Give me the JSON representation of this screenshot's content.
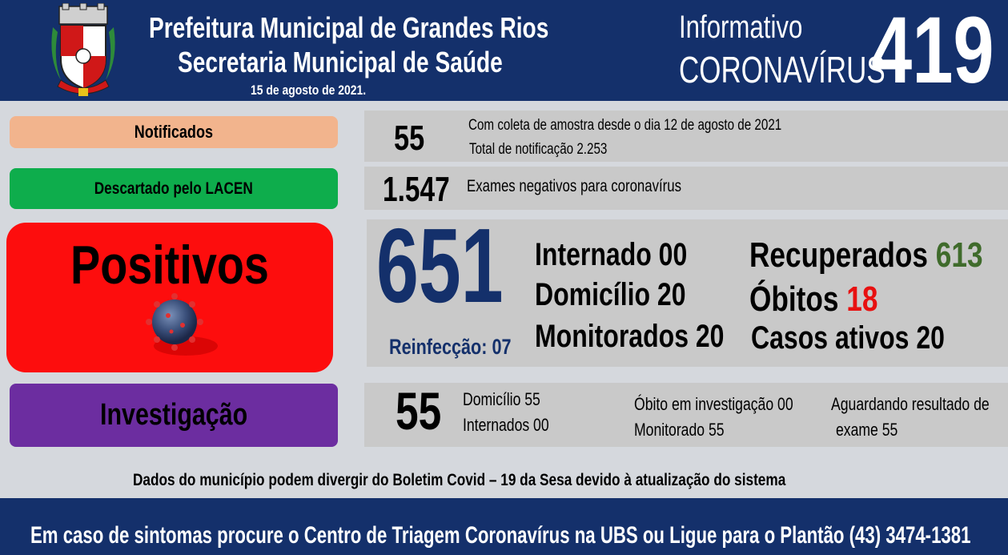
{
  "header": {
    "title_line1": "Prefeitura Municipal de Grandes Rios",
    "title_line2": "Secretaria Municipal de Saúde",
    "date": "15 de agosto  de 2021.",
    "informativo": "Informativo",
    "coronavirus": "CORONAVÍRUS",
    "bulletin_number": "419"
  },
  "notificados": {
    "label": "Notificados",
    "value": "55",
    "note1": "Com coleta de amostra desde o dia 12 de agosto de 2021",
    "note2": "Total de notificação  2.253"
  },
  "descartado": {
    "label": "Descartado  pelo LACEN",
    "value": "1.547",
    "note": "Exames negativos  para coronavírus"
  },
  "positivos": {
    "label": "Positivos",
    "value": "651",
    "reinfeccao": "Reinfecção:  07",
    "internado": "Internado 00",
    "domicilio": "Domicílio 20",
    "monitorados": "Monitorados 20",
    "recuperados_label": "Recuperados",
    "recuperados_value": "613",
    "obitos_label": "Óbitos",
    "obitos_value": "18",
    "casos_ativos": "Casos ativos 20"
  },
  "investigacao": {
    "label": "Investigação",
    "value": "55",
    "domicilio": "Domicílio 55",
    "internados": "Internados 00",
    "obito": "Óbito  em investigação  00",
    "monitorado": "Monitorado 55",
    "aguardando1": "Aguardando resultado de",
    "aguardando2": "exame 55"
  },
  "notice": "Dados do município  podem  divergir do Boletim  Covid – 19 da Sesa devido à atualização  do sistema",
  "footer": "Em caso de sintomas  procure  o Centro de Triagem  Coronavírus  na UBS ou Ligue para o Plantão  (43) 3474-1381",
  "colors": {
    "header_bg": "#14306b",
    "notificados": "#f2b48d",
    "descartado": "#0ead4c",
    "positivos": "#fd0d0d",
    "investigacao": "#6c2da0",
    "recuperados_value": "#3f6b2b",
    "obitos_value": "#e81010",
    "positive_number": "#14306b"
  }
}
